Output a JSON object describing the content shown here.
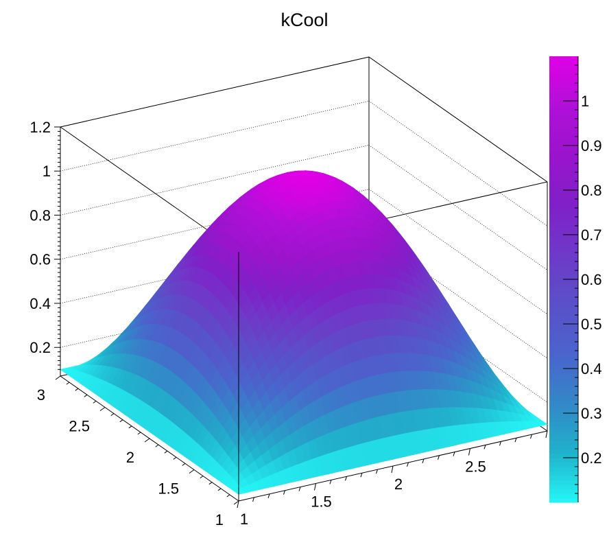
{
  "chart_data": {
    "type": "surface",
    "title": "kCool",
    "function": "0.1+(1-(x-2)*(x-2))*(1-(y-2)*(y-2))",
    "xlim": [
      1,
      3
    ],
    "ylim": [
      1,
      3
    ],
    "zlim": [
      0.07,
      1.2
    ],
    "x_ticks": [
      "1",
      "1.5",
      "2",
      "2.5",
      "3"
    ],
    "y_ticks": [
      "1",
      "1.5",
      "2",
      "2.5",
      "3"
    ],
    "z_ticks": [
      "0.2",
      "0.4",
      "0.6",
      "0.8",
      "1",
      "1.2"
    ],
    "z_tick_values": [
      0.2,
      0.4,
      0.6,
      0.8,
      1.0,
      1.2
    ],
    "palette": "kCool",
    "palette_colors": [
      "#25f6f6",
      "#20b2cc",
      "#3388c8",
      "#4a64cc",
      "#5a50c8",
      "#6e3ac8",
      "#8020c8",
      "#9a14cc",
      "#b010d8",
      "#e000e6"
    ],
    "colorbar_range": [
      0.1,
      1.1
    ],
    "colorbar_ticks": [
      "0.2",
      "0.3",
      "0.4",
      "0.5",
      "0.6",
      "0.7",
      "0.8",
      "0.9",
      "1"
    ],
    "colorbar_tick_values": [
      0.2,
      0.3,
      0.4,
      0.5,
      0.6,
      0.7,
      0.8,
      0.9,
      1.0
    ],
    "grid": true
  }
}
